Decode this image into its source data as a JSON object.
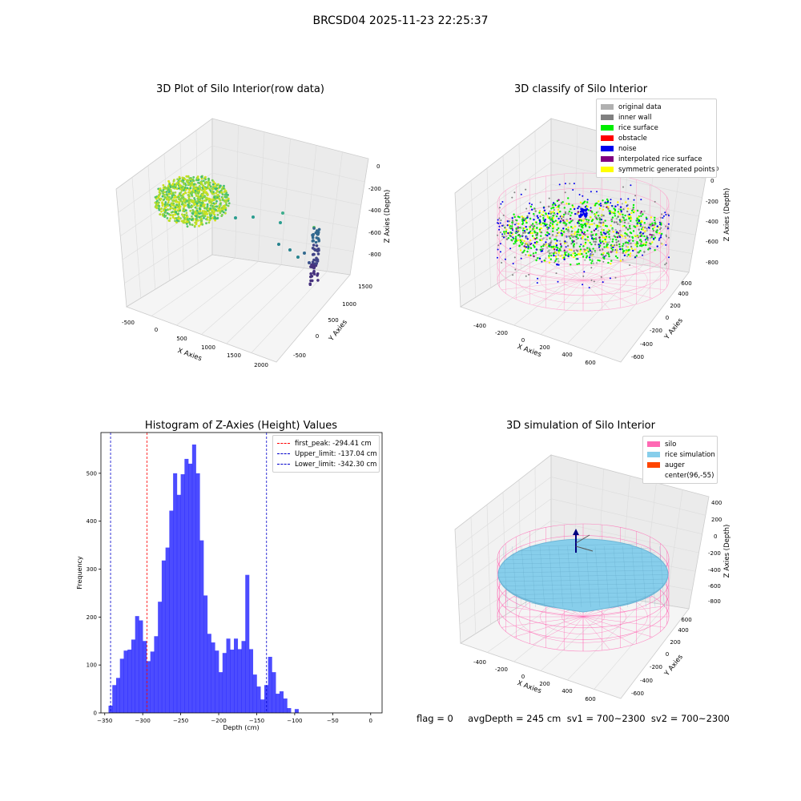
{
  "figure": {
    "suptitle": "BRCSD04 2025-11-23 22:25:37",
    "footer": "flag = 0     avgDepth = 245 cm  sv1 = 700~2300  sv2 = 700~2300"
  },
  "panels": {
    "raw": {
      "title": "3D Plot of Silo Interior(row data)",
      "xlabel": "X Axies",
      "ylabel": "Y Axies",
      "zlabel": "Z Axies (Depth)",
      "xticks": [
        "-500",
        "0",
        "500",
        "1000",
        "1500",
        "2000"
      ],
      "yticks": [
        "-500",
        "0",
        "500",
        "1000",
        "1500"
      ],
      "zticks": [
        "0",
        "-200",
        "-400",
        "-600",
        "-800"
      ]
    },
    "classify": {
      "title": "3D classify of Silo Interior",
      "xlabel": "X Axies",
      "ylabel": "Y Axies",
      "zlabel": "Z Axies (Depth)",
      "xticks": [
        "-400",
        "-200",
        "0",
        "200",
        "400",
        "600"
      ],
      "yticks": [
        "-600",
        "-400",
        "-200",
        "0",
        "200",
        "400",
        "600"
      ],
      "zticks": [
        "200",
        "0",
        "-200",
        "-400",
        "-600",
        "-800"
      ],
      "legend": [
        {
          "label": "original data",
          "color": "#b0b0b0"
        },
        {
          "label": "inner wall",
          "color": "#808080"
        },
        {
          "label": "rice surface",
          "color": "#00ee00"
        },
        {
          "label": "obstacle",
          "color": "#ff0000"
        },
        {
          "label": "noise",
          "color": "#0000ee"
        },
        {
          "label": "interpolated rice surface",
          "color": "#800080"
        },
        {
          "label": "symmetric generated points",
          "color": "#ffff00"
        }
      ]
    },
    "sim": {
      "title": "3D simulation of Silo Interior",
      "xlabel": "X Axies",
      "ylabel": "Y Axies",
      "zlabel": "Z Axies (Depth)",
      "xticks": [
        "-400",
        "-200",
        "0",
        "200",
        "400",
        "600"
      ],
      "yticks": [
        "-600",
        "-400",
        "-200",
        "0",
        "200",
        "400",
        "600"
      ],
      "zticks": [
        "400",
        "200",
        "0",
        "-200",
        "-400",
        "-600",
        "-800"
      ],
      "legend": [
        {
          "label": "silo",
          "color": "#ff69b4"
        },
        {
          "label": "rice simulation",
          "color": "#87ceeb"
        },
        {
          "label": "auger",
          "color": "#ff4500"
        },
        {
          "label": "center(96,-55)",
          "color": ""
        }
      ]
    }
  },
  "chart_data": {
    "type": "bar",
    "title": "Histogram of Z-Axies (Height) Values",
    "xlabel": "Depth (cm)",
    "ylabel": "Frequency",
    "xlim": [
      -355,
      15
    ],
    "ylim": [
      0,
      585
    ],
    "bin_start": -345,
    "bin_width": 5,
    "values": [
      15,
      58,
      73,
      113,
      130,
      132,
      153,
      202,
      193,
      150,
      108,
      128,
      160,
      232,
      318,
      345,
      422,
      500,
      455,
      498,
      530,
      520,
      560,
      500,
      360,
      245,
      165,
      147,
      130,
      85,
      125,
      155,
      132,
      155,
      133,
      150,
      288,
      133,
      80,
      55,
      28,
      58,
      117,
      85,
      40,
      45,
      30,
      10,
      0,
      8
    ],
    "xticks": [
      -350,
      -300,
      -250,
      -200,
      -150,
      -100,
      -50,
      0
    ],
    "yticks": [
      0,
      100,
      200,
      300,
      400,
      500
    ],
    "color": "#0000ff",
    "lines": [
      {
        "label": "first_peak: -294.41 cm",
        "x": -294.41,
        "color": "#ff0000"
      },
      {
        "label": "Upper_limit: -137.04 cm",
        "x": -137.04,
        "color": "#0000cc"
      },
      {
        "label": "Lower_limit: -342.30 cm",
        "x": -342.3,
        "color": "#0000cc"
      }
    ]
  }
}
